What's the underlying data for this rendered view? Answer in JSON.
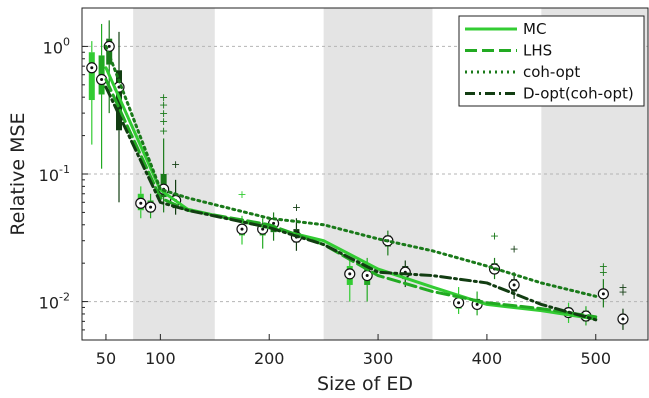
{
  "chart_data": {
    "type": "line",
    "xlabel": "Size of ED",
    "ylabel": "Relative MSE",
    "xlim": [
      28,
      548
    ],
    "ylim": [
      0.005,
      2.0
    ],
    "yscale": "log",
    "x_ticks": [
      50,
      100,
      200,
      300,
      400,
      500
    ],
    "x_tick_labels": [
      "50",
      "100",
      "200",
      "300",
      "400",
      "500"
    ],
    "y_ticks": [
      1,
      0.1,
      0.01
    ],
    "y_tick_labels": [
      {
        "base": "10",
        "exp": "0"
      },
      {
        "base": "10",
        "exp": "-1"
      },
      {
        "base": "10",
        "exp": "-2"
      }
    ],
    "grid": "horizontal dashed",
    "shaded_bands": [
      [
        75,
        150
      ],
      [
        250,
        350
      ],
      [
        450,
        548
      ]
    ],
    "legend_position": "top-right",
    "series": [
      {
        "name": "MC",
        "style": "solid",
        "color": "#33cc33",
        "x": [
          50,
          100,
          125,
          200,
          250,
          300,
          350,
          400,
          450,
          500
        ],
        "y": [
          0.68,
          0.075,
          0.053,
          0.038,
          0.03,
          0.018,
          0.013,
          0.0095,
          0.0085,
          0.0073
        ]
      },
      {
        "name": "LHS",
        "style": "dashed",
        "color": "#22aa22",
        "x": [
          50,
          100,
          125,
          200,
          250,
          300,
          350,
          400,
          450,
          500
        ],
        "y": [
          0.55,
          0.065,
          0.052,
          0.04,
          0.028,
          0.016,
          0.012,
          0.0098,
          0.0088,
          0.0076
        ]
      },
      {
        "name": "coh-opt",
        "style": "dotted",
        "color": "#1a7a1a",
        "x": [
          50,
          100,
          125,
          200,
          250,
          300,
          350,
          400,
          450,
          500
        ],
        "y": [
          1.0,
          0.076,
          0.065,
          0.045,
          0.04,
          0.031,
          0.025,
          0.019,
          0.014,
          0.011
        ]
      },
      {
        "name": "D-opt(coh-opt)",
        "style": "dashdot",
        "color": "#123d12",
        "x": [
          50,
          100,
          125,
          200,
          250,
          300,
          350,
          400,
          450,
          500
        ],
        "y": [
          0.48,
          0.06,
          0.052,
          0.038,
          0.028,
          0.017,
          0.016,
          0.014,
          0.0095,
          0.0072
        ]
      }
    ],
    "boxplots": [
      {
        "x": 37,
        "q1": 0.38,
        "median": 0.68,
        "q3": 0.9,
        "wlo": 0.17,
        "whi": 1.1,
        "color": "#33cc33"
      },
      {
        "x": 46,
        "q1": 0.42,
        "median": 0.55,
        "q3": 0.85,
        "wlo": 0.11,
        "whi": 1.5,
        "color": "#22aa22"
      },
      {
        "x": 53,
        "q1": 0.72,
        "median": 1.0,
        "q3": 1.15,
        "wlo": 0.3,
        "whi": 1.6,
        "color": "#1a7a1a"
      },
      {
        "x": 62,
        "q1": 0.22,
        "median": 0.48,
        "q3": 0.65,
        "wlo": 0.06,
        "whi": 1.3,
        "color": "#123d12"
      },
      {
        "x": 82,
        "q1": 0.052,
        "median": 0.059,
        "q3": 0.07,
        "wlo": 0.045,
        "whi": 0.08,
        "color": "#33cc33"
      },
      {
        "x": 91,
        "q1": 0.05,
        "median": 0.055,
        "q3": 0.062,
        "wlo": 0.045,
        "whi": 0.07,
        "color": "#22aa22"
      },
      {
        "x": 103,
        "q1": 0.066,
        "median": 0.076,
        "q3": 0.1,
        "wlo": 0.05,
        "whi": 0.19,
        "color": "#1a7a1a"
      },
      {
        "x": 114,
        "q1": 0.054,
        "median": 0.062,
        "q3": 0.07,
        "wlo": 0.048,
        "whi": 0.09,
        "color": "#123d12"
      },
      {
        "x": 175,
        "q1": 0.033,
        "median": 0.037,
        "q3": 0.04,
        "wlo": 0.028,
        "whi": 0.047,
        "color": "#33cc33"
      },
      {
        "x": 194,
        "q1": 0.033,
        "median": 0.037,
        "q3": 0.04,
        "wlo": 0.026,
        "whi": 0.045,
        "color": "#22aa22"
      },
      {
        "x": 204,
        "q1": 0.035,
        "median": 0.041,
        "q3": 0.045,
        "wlo": 0.03,
        "whi": 0.05,
        "color": "#1a7a1a"
      },
      {
        "x": 225,
        "q1": 0.029,
        "median": 0.032,
        "q3": 0.037,
        "wlo": 0.025,
        "whi": 0.045,
        "color": "#123d12"
      },
      {
        "x": 274,
        "q1": 0.0135,
        "median": 0.0165,
        "q3": 0.019,
        "wlo": 0.01,
        "whi": 0.022,
        "color": "#33cc33"
      },
      {
        "x": 290,
        "q1": 0.0135,
        "median": 0.016,
        "q3": 0.019,
        "wlo": 0.01,
        "whi": 0.022,
        "color": "#22aa22"
      },
      {
        "x": 309,
        "q1": 0.027,
        "median": 0.03,
        "q3": 0.033,
        "wlo": 0.023,
        "whi": 0.036,
        "color": "#1a7a1a"
      },
      {
        "x": 325,
        "q1": 0.015,
        "median": 0.017,
        "q3": 0.019,
        "wlo": 0.013,
        "whi": 0.021,
        "color": "#123d12"
      },
      {
        "x": 374,
        "q1": 0.0088,
        "median": 0.0098,
        "q3": 0.011,
        "wlo": 0.008,
        "whi": 0.013,
        "color": "#33cc33"
      },
      {
        "x": 391,
        "q1": 0.0088,
        "median": 0.0095,
        "q3": 0.0105,
        "wlo": 0.0078,
        "whi": 0.012,
        "color": "#22aa22"
      },
      {
        "x": 407,
        "q1": 0.0165,
        "median": 0.018,
        "q3": 0.02,
        "wlo": 0.015,
        "whi": 0.022,
        "color": "#1a7a1a"
      },
      {
        "x": 425,
        "q1": 0.012,
        "median": 0.0135,
        "q3": 0.015,
        "wlo": 0.0105,
        "whi": 0.017,
        "color": "#123d12"
      },
      {
        "x": 475,
        "q1": 0.0075,
        "median": 0.0082,
        "q3": 0.009,
        "wlo": 0.0068,
        "whi": 0.0098,
        "color": "#33cc33"
      },
      {
        "x": 491,
        "q1": 0.007,
        "median": 0.0077,
        "q3": 0.0085,
        "wlo": 0.0065,
        "whi": 0.0092,
        "color": "#22aa22"
      },
      {
        "x": 507,
        "q1": 0.0105,
        "median": 0.0115,
        "q3": 0.0125,
        "wlo": 0.009,
        "whi": 0.015,
        "color": "#1a7a1a"
      },
      {
        "x": 525,
        "q1": 0.0068,
        "median": 0.0073,
        "q3": 0.008,
        "wlo": 0.006,
        "whi": 0.0088,
        "color": "#123d12"
      }
    ],
    "outliers": [
      {
        "x": 103,
        "y": [
          0.22,
          0.26,
          0.3,
          0.35,
          0.4
        ],
        "color": "#1a7a1a"
      },
      {
        "x": 114,
        "y": [
          0.12
        ],
        "color": "#123d12"
      },
      {
        "x": 175,
        "y": [
          0.07
        ],
        "color": "#33cc33"
      },
      {
        "x": 225,
        "y": [
          0.055
        ],
        "color": "#123d12"
      },
      {
        "x": 407,
        "y": [
          0.033
        ],
        "color": "#1a7a1a"
      },
      {
        "x": 425,
        "y": [
          0.026
        ],
        "color": "#123d12"
      },
      {
        "x": 507,
        "y": [
          0.017,
          0.019
        ],
        "color": "#1a7a1a"
      },
      {
        "x": 525,
        "y": [
          0.012,
          0.013
        ],
        "color": "#123d12"
      }
    ]
  }
}
